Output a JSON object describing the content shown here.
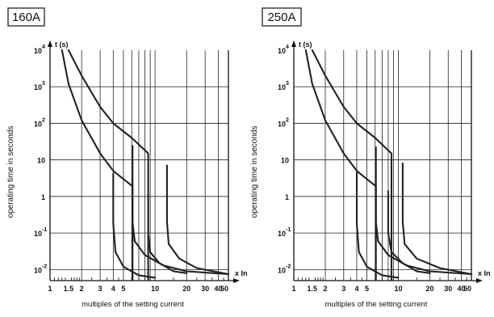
{
  "chart_data": [
    {
      "type": "line",
      "title": "160A",
      "xlabel": "multiples of the setting current",
      "ylabel": "operating time in seconds",
      "x_axis_unit": "x In",
      "y_axis_unit": "t (s)",
      "x_scale": "log",
      "y_scale": "log",
      "xlim": [
        1,
        50
      ],
      "ylim": [
        0.005,
        10000
      ],
      "grid": true,
      "x_ticks": [
        "1",
        "1.5",
        "2",
        "3",
        "4",
        "5",
        "10",
        "20",
        "30",
        "40",
        "50"
      ],
      "y_ticks": [
        {
          "base": "10",
          "exp": "4"
        },
        {
          "base": "10",
          "exp": "3"
        },
        {
          "base": "10",
          "exp": "2"
        },
        {
          "base": "10",
          "exp": ""
        },
        {
          "base": "1",
          "exp": ""
        },
        {
          "base": "10",
          "exp": "-1"
        },
        {
          "base": "10",
          "exp": "-2"
        }
      ],
      "series": [
        {
          "x": [
            1.3,
            1.5,
            2,
            3,
            4,
            4.4,
            6.1,
            6.1
          ],
          "y": [
            10000,
            1200,
            120,
            15,
            5,
            4,
            1.9,
            0.0015
          ]
        },
        {
          "x": [
            1.5,
            2,
            3,
            4,
            6,
            8.6,
            8.6
          ],
          "y": [
            10000,
            2000,
            280,
            100,
            40,
            15,
            0.0015
          ]
        },
        {
          "x": [
            4.0,
            4.0,
            4.2,
            5,
            7,
            10
          ],
          "y": [
            4.2,
            0.18,
            0.03,
            0.012,
            0.007,
            0.006
          ]
        },
        {
          "x": [
            6.1,
            6.1,
            6.4,
            8,
            12,
            20,
            50
          ],
          "y": [
            24,
            0.2,
            0.06,
            0.025,
            0.013,
            0.009,
            0.0075
          ]
        },
        {
          "x": [
            8.6,
            8.6,
            9.0,
            11,
            15,
            20
          ],
          "y": [
            1.2,
            0.1,
            0.03,
            0.015,
            0.009,
            0.008
          ]
        },
        {
          "x": [
            13,
            13,
            13.5,
            17,
            25,
            50
          ],
          "y": [
            7,
            0.2,
            0.05,
            0.02,
            0.011,
            0.0075
          ]
        }
      ]
    },
    {
      "type": "line",
      "title": "250A",
      "xlabel": "multiples of the setting current",
      "ylabel": "operating time in seconds",
      "x_axis_unit": "x In",
      "y_axis_unit": "t (s)",
      "x_scale": "log",
      "y_scale": "log",
      "xlim": [
        1,
        50
      ],
      "ylim": [
        0.005,
        10000
      ],
      "grid": true,
      "x_ticks": [
        "1",
        "1.5",
        "2",
        "3",
        "4",
        "5",
        "10",
        "20",
        "30",
        "40",
        "50"
      ],
      "y_ticks": [
        {
          "base": "10",
          "exp": "4"
        },
        {
          "base": "10",
          "exp": "3"
        },
        {
          "base": "10",
          "exp": "2"
        },
        {
          "base": "10",
          "exp": ""
        },
        {
          "base": "1",
          "exp": ""
        },
        {
          "base": "10",
          "exp": "-1"
        },
        {
          "base": "10",
          "exp": "-2"
        }
      ],
      "series": [
        {
          "x": [
            1.3,
            1.5,
            2,
            3,
            4,
            4.4,
            6.1,
            6.1
          ],
          "y": [
            10000,
            1200,
            120,
            15,
            5,
            4,
            1.9,
            0.0015
          ]
        },
        {
          "x": [
            1.5,
            2,
            3,
            4,
            6,
            8.6,
            8.6
          ],
          "y": [
            10000,
            2000,
            280,
            100,
            40,
            15,
            0.0015
          ]
        },
        {
          "x": [
            4.0,
            4.0,
            4.2,
            5,
            7,
            10
          ],
          "y": [
            4.6,
            0.18,
            0.03,
            0.012,
            0.007,
            0.006
          ]
        },
        {
          "x": [
            6.1,
            6.1,
            6.4,
            8,
            12,
            20,
            50
          ],
          "y": [
            22,
            0.2,
            0.06,
            0.025,
            0.013,
            0.009,
            0.0075
          ]
        },
        {
          "x": [
            8.0,
            8.0,
            8.6,
            11,
            15,
            20
          ],
          "y": [
            1.4,
            0.1,
            0.03,
            0.015,
            0.009,
            0.008
          ]
        },
        {
          "x": [
            11,
            11,
            11.5,
            15,
            25,
            50
          ],
          "y": [
            8,
            0.2,
            0.05,
            0.02,
            0.011,
            0.0075
          ]
        }
      ]
    }
  ]
}
